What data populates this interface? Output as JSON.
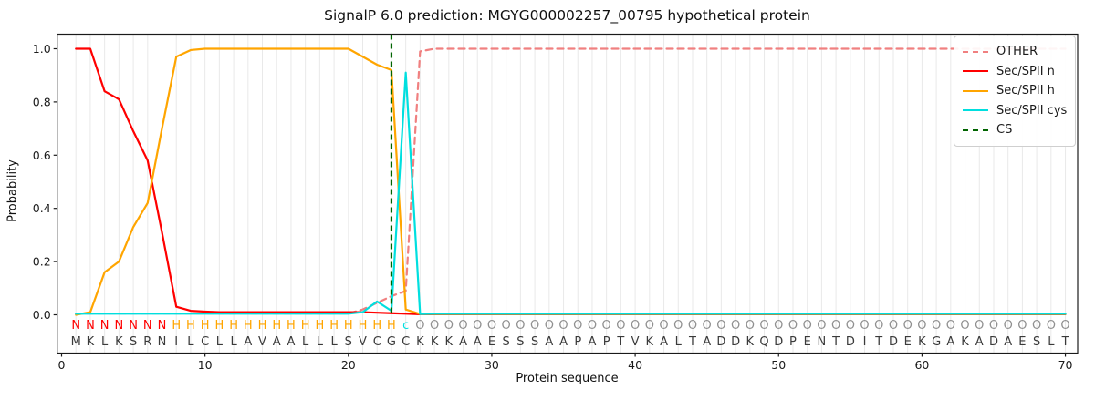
{
  "title": "SignalP 6.0 prediction: MGYG000002257_00795 hypothetical protein",
  "axes": {
    "xlabel": "Protein sequence",
    "ylabel": "Probability"
  },
  "legend": [
    {
      "label": "OTHER",
      "color": "#f08080",
      "dash": true
    },
    {
      "label": "Sec/SPII n",
      "color": "#ff0000",
      "dash": false
    },
    {
      "label": "Sec/SPII h",
      "color": "#ffa500",
      "dash": false
    },
    {
      "label": "Sec/SPII cys",
      "color": "#00dfdf",
      "dash": false
    },
    {
      "label": "CS",
      "color": "#006400",
      "dash": true
    }
  ],
  "chart_data": {
    "type": "line",
    "title": "SignalP 6.0 prediction: MGYG000002257_00795 hypothetical protein",
    "xlabel": "Protein sequence",
    "ylabel": "Probability",
    "xlim": [
      -0.3,
      70.9
    ],
    "ylim": [
      -0.14,
      1.05
    ],
    "xticks": [
      0,
      10,
      20,
      30,
      40,
      50,
      60,
      70
    ],
    "yticks": [
      "0.0",
      "0.2",
      "0.4",
      "0.6",
      "0.8",
      "1.0"
    ],
    "grid": "vertical line at every residue position 1-70",
    "legend_position": "upper right",
    "cs_position": 23,
    "cs_color": "#006400",
    "sequence": "MKLKSRNILCLLAVAALLLSVCGCKKKAAESSSAAPAPTVKALTADDKQDPENTDITDEKGAKADAESLT",
    "residue_labels": "NNNNNNNHHHHHHHHHHHHHHHHcOOOOOOOOOOOOOOOOOOOOOOOOOOOOOOOOOOOOOOOOOOOOOO",
    "label_colors": {
      "N": "#ff0000",
      "H": "#ffa500",
      "c": "#00dfdf",
      "O": "#909090"
    },
    "sequence_color": "#3a3a3a",
    "series": [
      {
        "name": "OTHER",
        "color": "#f08080",
        "dash": true,
        "values": [
          0.005,
          0.005,
          0.005,
          0.005,
          0.005,
          0.005,
          0.005,
          0.005,
          0.005,
          0.005,
          0.005,
          0.005,
          0.005,
          0.005,
          0.005,
          0.005,
          0.005,
          0.005,
          0.005,
          0.005,
          0.02,
          0.045,
          0.07,
          0.09,
          0.99,
          1.0,
          1.0,
          1.0,
          1.0,
          1.0,
          1.0,
          1.0,
          1.0,
          1.0,
          1.0,
          1.0,
          1.0,
          1.0,
          1.0,
          1.0,
          1.0,
          1.0,
          1.0,
          1.0,
          1.0,
          1.0,
          1.0,
          1.0,
          1.0,
          1.0,
          1.0,
          1.0,
          1.0,
          1.0,
          1.0,
          1.0,
          1.0,
          1.0,
          1.0,
          1.0,
          1.0,
          1.0,
          1.0,
          1.0,
          1.0,
          1.0,
          1.0,
          1.0,
          1.0,
          1.0
        ]
      },
      {
        "name": "Sec/SPII n",
        "color": "#ff0000",
        "dash": false,
        "values": [
          1.0,
          1.0,
          0.84,
          0.81,
          0.69,
          0.58,
          0.31,
          0.03,
          0.015,
          0.012,
          0.01,
          0.01,
          0.01,
          0.01,
          0.01,
          0.01,
          0.01,
          0.01,
          0.01,
          0.01,
          0.01,
          0.008,
          0.006,
          0.004,
          0.002,
          0.002,
          0.002,
          0.002,
          0.002,
          0.002,
          0.002,
          0.002,
          0.002,
          0.002,
          0.002,
          0.002,
          0.002,
          0.002,
          0.002,
          0.002,
          0.002,
          0.002,
          0.002,
          0.002,
          0.002,
          0.002,
          0.002,
          0.002,
          0.002,
          0.002,
          0.002,
          0.002,
          0.002,
          0.002,
          0.002,
          0.002,
          0.002,
          0.002,
          0.002,
          0.002,
          0.002,
          0.002,
          0.002,
          0.002,
          0.002,
          0.002,
          0.002,
          0.002,
          0.002,
          0.002
        ]
      },
      {
        "name": "Sec/SPII h",
        "color": "#ffa500",
        "dash": false,
        "values": [
          0.0,
          0.01,
          0.16,
          0.2,
          0.33,
          0.42,
          0.7,
          0.97,
          0.995,
          1.0,
          1.0,
          1.0,
          1.0,
          1.0,
          1.0,
          1.0,
          1.0,
          1.0,
          1.0,
          1.0,
          0.97,
          0.94,
          0.92,
          0.02,
          0.003,
          0.003,
          0.003,
          0.003,
          0.003,
          0.003,
          0.003,
          0.003,
          0.003,
          0.003,
          0.003,
          0.003,
          0.003,
          0.003,
          0.003,
          0.003,
          0.003,
          0.003,
          0.003,
          0.003,
          0.003,
          0.003,
          0.003,
          0.003,
          0.003,
          0.003,
          0.003,
          0.003,
          0.003,
          0.003,
          0.003,
          0.003,
          0.003,
          0.003,
          0.003,
          0.003,
          0.003,
          0.003,
          0.003,
          0.003,
          0.003,
          0.003,
          0.003,
          0.003,
          0.003,
          0.003
        ]
      },
      {
        "name": "Sec/SPII cys",
        "color": "#00dfdf",
        "dash": false,
        "values": [
          0.004,
          0.004,
          0.004,
          0.004,
          0.004,
          0.004,
          0.004,
          0.004,
          0.004,
          0.004,
          0.004,
          0.004,
          0.004,
          0.004,
          0.004,
          0.004,
          0.004,
          0.004,
          0.004,
          0.004,
          0.01,
          0.05,
          0.015,
          0.91,
          0.003,
          0.004,
          0.004,
          0.004,
          0.004,
          0.004,
          0.004,
          0.004,
          0.004,
          0.004,
          0.004,
          0.004,
          0.004,
          0.004,
          0.004,
          0.004,
          0.004,
          0.004,
          0.004,
          0.004,
          0.004,
          0.004,
          0.004,
          0.004,
          0.004,
          0.004,
          0.004,
          0.004,
          0.004,
          0.004,
          0.004,
          0.004,
          0.004,
          0.004,
          0.004,
          0.004,
          0.004,
          0.004,
          0.004,
          0.004,
          0.004,
          0.004,
          0.004,
          0.004,
          0.004,
          0.004
        ]
      }
    ]
  }
}
